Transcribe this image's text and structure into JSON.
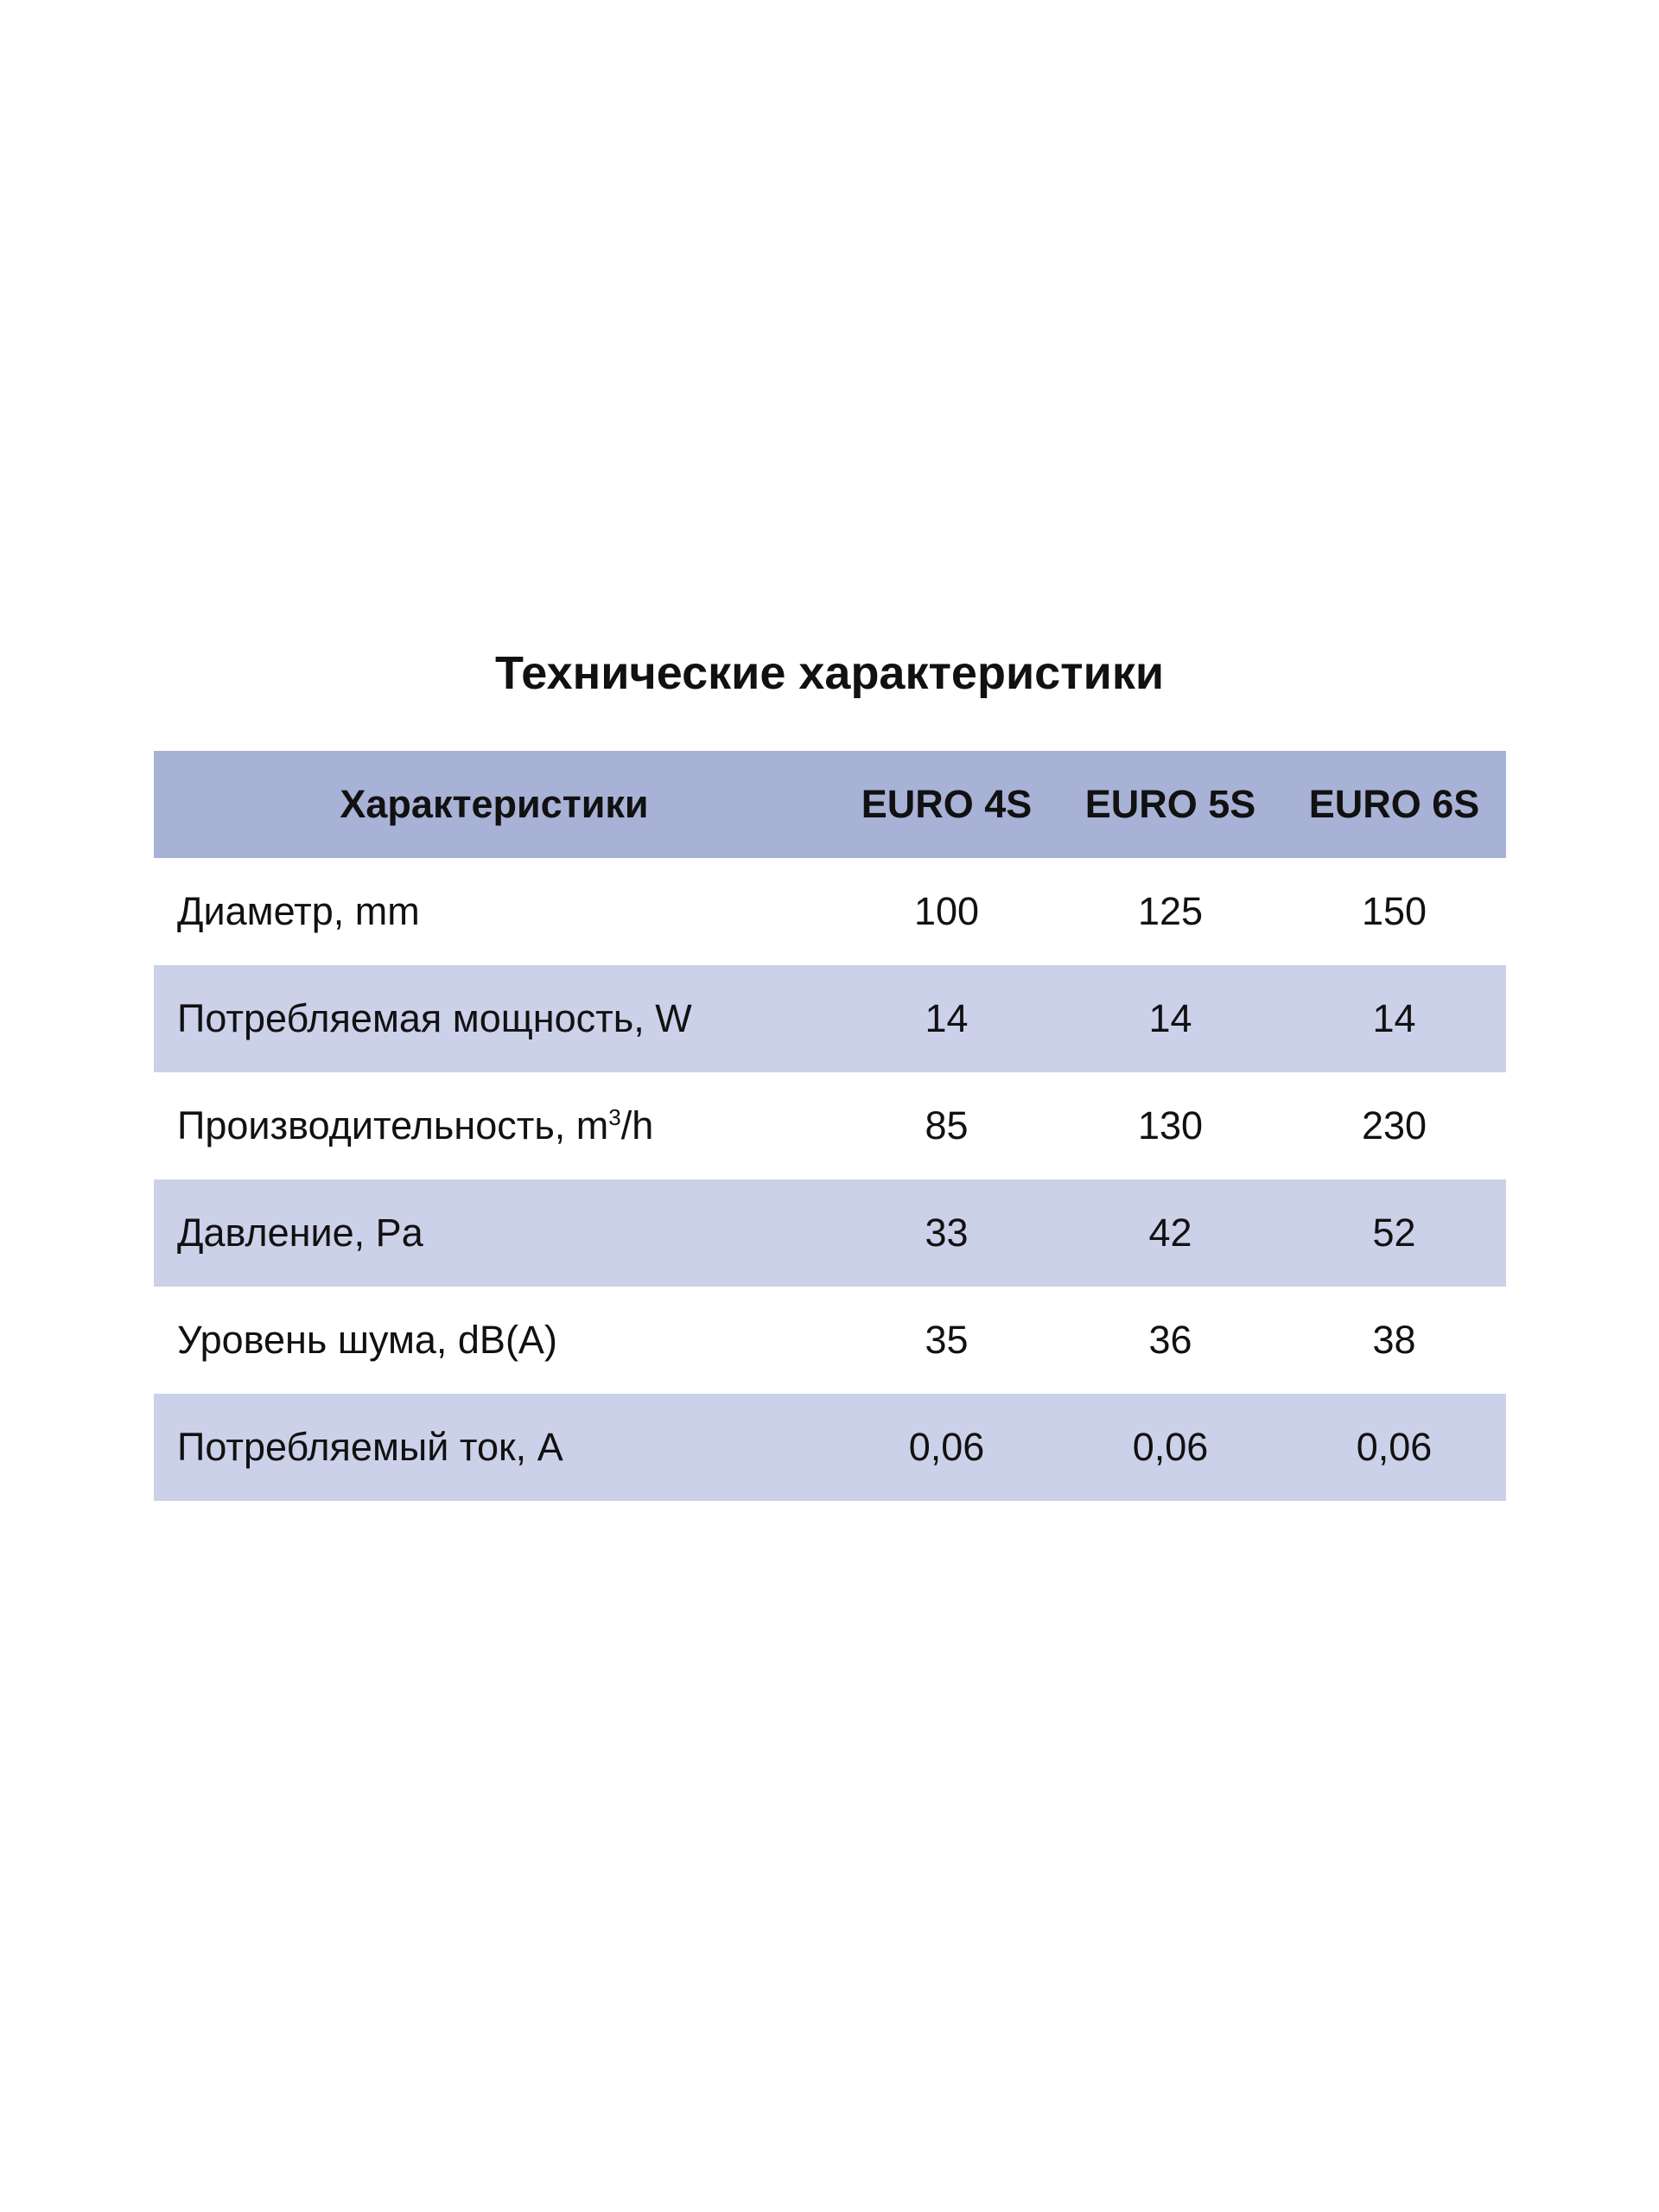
{
  "title": "Технические характеристики",
  "colors": {
    "header_bg": "#a8b2d6",
    "alt_row_bg": "#ccd1ea"
  },
  "table": {
    "headers": [
      "Характеристики",
      "EURO 4S",
      "EURO 5S",
      "EURO 6S"
    ],
    "rows": [
      {
        "label": "Диаметр, mm",
        "values": [
          "100",
          "125",
          "150"
        ]
      },
      {
        "label": "Потребляемая мощность, W",
        "values": [
          "14",
          "14",
          "14"
        ]
      },
      {
        "label": "Производительность, m",
        "label_sup": "3",
        "label_suffix": "/h",
        "values": [
          "85",
          "130",
          "230"
        ]
      },
      {
        "label": "Давление, Pa",
        "values": [
          "33",
          "42",
          "52"
        ]
      },
      {
        "label": "Уровень шума, dB(A)",
        "values": [
          "35",
          "36",
          "38"
        ]
      },
      {
        "label": "Потребляемый ток, A",
        "values": [
          "0,06",
          "0,06",
          "0,06"
        ]
      }
    ]
  }
}
